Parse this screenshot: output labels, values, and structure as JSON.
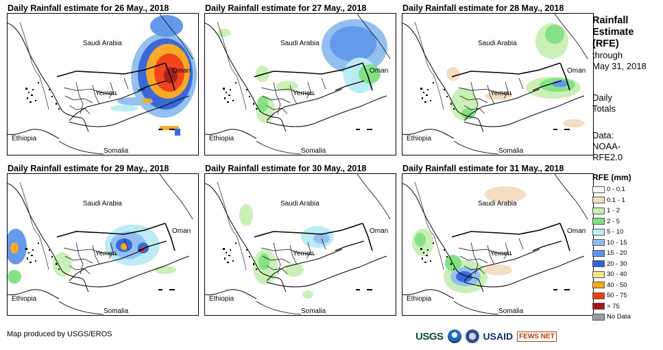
{
  "panels": [
    {
      "title": "Daily Rainfall estimate for 26 May., 2018",
      "overlay": "p26"
    },
    {
      "title": "Daily Rainfall estimate for 27 May., 2018",
      "overlay": "p27"
    },
    {
      "title": "Daily Rainfall estimate for 28 May., 2018",
      "overlay": "p28"
    },
    {
      "title": "Daily Rainfall estimate for 29 May., 2018",
      "overlay": "p29"
    },
    {
      "title": "Daily Rainfall estimate for 30 May., 2018",
      "overlay": "p30"
    },
    {
      "title": "Daily Rainfall estimate for 31 May., 2018",
      "overlay": "p31"
    }
  ],
  "map_labels": {
    "saudi": "Saudi Arabia",
    "oman": "Oman",
    "yemen": "Yemen",
    "ethiopia": "Ethiopia",
    "somalia": "Somalia"
  },
  "sidebar": {
    "title_line1": "Rainfall",
    "title_line2": "Estimate",
    "title_line3": "(RFE)",
    "through": "through",
    "through_date": "May 31, 2018",
    "daily": "Daily",
    "totals": "Totals",
    "data_label": "Data:",
    "data_source1": "NOAA-",
    "data_source2": "RFE2.0"
  },
  "legend": {
    "title": "RFE (mm)",
    "items": [
      {
        "label": "0 - 0.1",
        "color": "#ffffff"
      },
      {
        "label": "0.1 - 1",
        "color": "#f3dcc0"
      },
      {
        "label": "1 - 2",
        "color": "#c8f0b4"
      },
      {
        "label": "2 - 5",
        "color": "#7fe07f"
      },
      {
        "label": "5 - 10",
        "color": "#b8ecf5"
      },
      {
        "label": "10 - 15",
        "color": "#8fbdf0"
      },
      {
        "label": "15 - 20",
        "color": "#5b95e8"
      },
      {
        "label": "20 - 30",
        "color": "#2f62d8"
      },
      {
        "label": "30 - 40",
        "color": "#f8e38a"
      },
      {
        "label": "40 - 50",
        "color": "#f7a51c"
      },
      {
        "label": "50 - 75",
        "color": "#f23b0f"
      },
      {
        "label": "> 75",
        "color": "#a31515"
      },
      {
        "label": "No Data",
        "color": "#9e9e9e"
      }
    ]
  },
  "credit": "Map produced by USGS/EROS",
  "logos": {
    "usgs": "USGS",
    "usaid": "USAID",
    "fews": "FEWS NET"
  }
}
